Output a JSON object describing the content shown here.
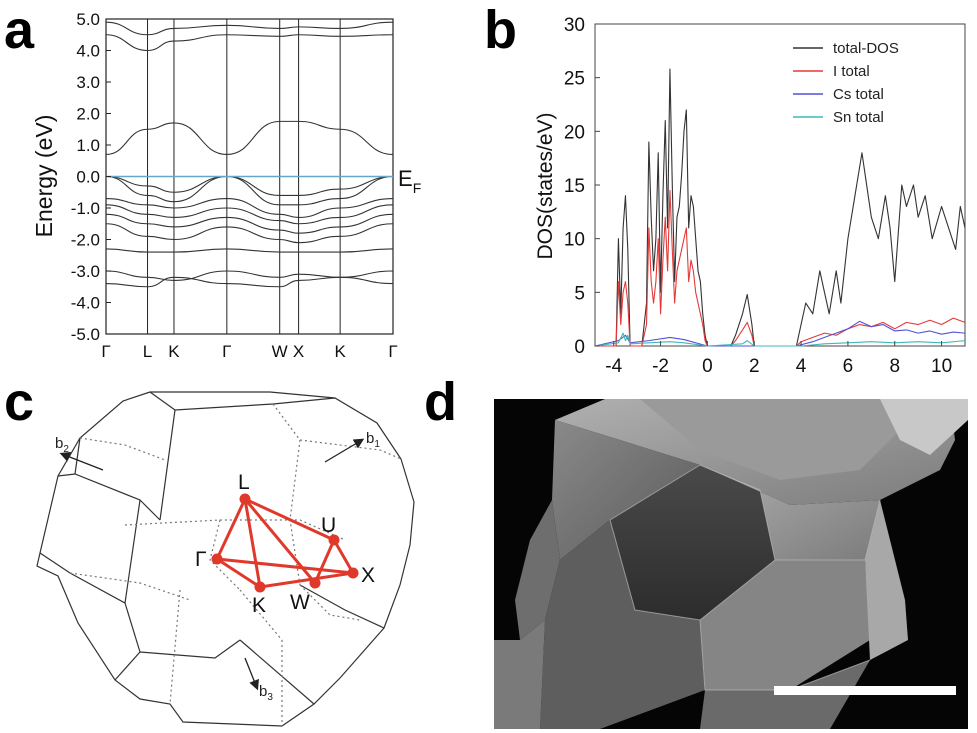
{
  "panels": {
    "a": {
      "letter": "a"
    },
    "b": {
      "letter": "b"
    },
    "c": {
      "letter": "c"
    },
    "d": {
      "letter": "d"
    }
  },
  "chart_data": [
    {
      "panel": "a",
      "type": "line",
      "ylabel": "Energy (eV)",
      "ylim": [
        -5.0,
        5.0
      ],
      "yticks": [
        "5.0",
        "4.0",
        "3.0",
        "2.0",
        "1.0",
        "0.0",
        "-1.0",
        "-2.0",
        "-3.0",
        "-4.0",
        "-5.0"
      ],
      "ytick_values": [
        5,
        4,
        3,
        2,
        1,
        0,
        -1,
        -2,
        -3,
        -4,
        -5
      ],
      "kpath": [
        "Γ",
        "L",
        "K",
        "Γ",
        "W",
        "X",
        "K",
        "Γ"
      ],
      "kpath_positions": [
        0,
        0.55,
        0.9,
        1.6,
        2.3,
        2.55,
        3.1,
        3.8
      ],
      "fermi_label": "E",
      "fermi_sub": "F",
      "fermi_energy": 0.0,
      "fermi_color": "#6aa4c8",
      "bands": [
        [
          4.5,
          4.0,
          4.3,
          4.5,
          4.45,
          4.5,
          4.45,
          4.5
        ],
        [
          4.9,
          4.5,
          4.7,
          4.8,
          4.7,
          4.75,
          4.7,
          4.9
        ],
        [
          0.7,
          1.5,
          1.7,
          0.7,
          1.75,
          1.75,
          1.5,
          0.7
        ],
        [
          0.0,
          -0.3,
          -0.5,
          0.0,
          -0.6,
          -0.6,
          -0.4,
          0.0
        ],
        [
          0.0,
          -0.6,
          -0.8,
          0.0,
          -0.9,
          -0.9,
          -0.7,
          0.0
        ],
        [
          -0.7,
          -0.9,
          -1.0,
          -0.7,
          -1.2,
          -1.3,
          -1.0,
          -0.7
        ],
        [
          -0.9,
          -1.2,
          -1.3,
          -1.0,
          -1.4,
          -1.5,
          -1.3,
          -0.9
        ],
        [
          -1.2,
          -1.5,
          -1.6,
          -1.3,
          -1.7,
          -1.8,
          -1.6,
          -1.2
        ],
        [
          -1.5,
          -1.9,
          -2.0,
          -1.6,
          -2.0,
          -2.1,
          -1.9,
          -1.5
        ],
        [
          -2.3,
          -2.4,
          -2.4,
          -2.3,
          -2.4,
          -2.4,
          -2.4,
          -2.3
        ],
        [
          -3.0,
          -3.2,
          -3.3,
          -3.0,
          -3.2,
          -3.1,
          -3.2,
          -3.0
        ],
        [
          -3.4,
          -3.5,
          -3.2,
          -3.4,
          -3.5,
          -3.3,
          -3.2,
          -3.4
        ]
      ]
    },
    {
      "panel": "b",
      "type": "line",
      "ylabel": "DOS(states/eV)",
      "xlabel": "",
      "xlim": [
        -4.8,
        11
      ],
      "ylim": [
        0,
        30
      ],
      "xticks": [
        "-4",
        "-2",
        "0",
        "2",
        "4",
        "6",
        "8",
        "10"
      ],
      "xtick_values": [
        -4,
        -2,
        0,
        2,
        4,
        6,
        8,
        10
      ],
      "yticks": [
        "0",
        "5",
        "10",
        "15",
        "20",
        "25",
        "30"
      ],
      "ytick_values": [
        0,
        5,
        10,
        15,
        20,
        25,
        30
      ],
      "legend_position": "top-right",
      "series": [
        {
          "name": "total-DOS",
          "color": "#333333",
          "x": [
            -4.8,
            -3.9,
            -3.8,
            -3.7,
            -3.6,
            -3.5,
            -3.4,
            -3.3,
            -3.2,
            -3.0,
            -2.8,
            -2.6,
            -2.5,
            -2.4,
            -2.3,
            -2.2,
            -2.1,
            -2.0,
            -1.9,
            -1.8,
            -1.7,
            -1.6,
            -1.5,
            -1.4,
            -1.3,
            -1.2,
            -1.1,
            -1.0,
            -0.9,
            -0.8,
            -0.7,
            -0.6,
            -0.5,
            -0.4,
            -0.3,
            -0.2,
            -0.1,
            0.0,
            0.1,
            1.0,
            1.2,
            1.5,
            1.7,
            1.9,
            2.0,
            3.8,
            4.0,
            4.2,
            4.5,
            4.8,
            5.0,
            5.2,
            5.5,
            5.7,
            6.0,
            6.3,
            6.6,
            6.8,
            7.0,
            7.3,
            7.6,
            7.8,
            8.0,
            8.3,
            8.5,
            8.8,
            9.0,
            9.3,
            9.6,
            10.0,
            10.3,
            10.6,
            10.8,
            11.0
          ],
          "y": [
            0,
            0,
            10,
            3,
            11,
            14,
            9,
            0,
            0,
            0,
            0,
            4,
            19,
            12,
            7,
            10,
            18,
            5,
            14,
            21,
            11,
            25.8,
            15,
            6,
            12,
            13,
            16,
            20,
            22,
            11,
            14,
            13,
            10,
            7,
            6,
            3,
            1,
            0,
            0,
            0,
            1,
            3,
            4.8,
            2,
            0,
            0,
            2,
            4,
            3,
            7,
            5,
            3,
            7,
            4,
            10,
            14,
            18,
            15,
            12,
            10,
            14,
            11,
            6,
            15,
            13,
            15,
            12,
            14,
            10,
            13,
            11,
            9,
            13,
            11
          ]
        },
        {
          "name": "I total",
          "color": "#e53939",
          "x": [
            -4.8,
            -3.9,
            -3.8,
            -3.7,
            -3.6,
            -3.5,
            -3.4,
            -3.3,
            -3.2,
            -3.0,
            -2.8,
            -2.6,
            -2.5,
            -2.4,
            -2.3,
            -2.2,
            -2.1,
            -2.0,
            -1.9,
            -1.8,
            -1.7,
            -1.6,
            -1.5,
            -1.4,
            -1.3,
            -1.2,
            -1.1,
            -1.0,
            -0.9,
            -0.8,
            -0.7,
            -0.6,
            -0.5,
            -0.4,
            -0.3,
            -0.2,
            -0.1,
            0.0,
            0.1,
            1.0,
            1.2,
            1.5,
            1.7,
            1.9,
            2.0,
            3.8,
            4.0,
            4.5,
            5.0,
            5.5,
            6.0,
            6.5,
            7.0,
            7.5,
            8.0,
            8.5,
            9.0,
            9.5,
            10.0,
            10.5,
            11.0
          ],
          "y": [
            0,
            0,
            6,
            2,
            5,
            6,
            4,
            0,
            0,
            0,
            0,
            2,
            11,
            6,
            4,
            6,
            10,
            3,
            8,
            12,
            7,
            14.5,
            9,
            4,
            7,
            8,
            9,
            10,
            11,
            6,
            8,
            7,
            5,
            4,
            3,
            2,
            0.5,
            0,
            0,
            0,
            0.5,
            1.5,
            2.2,
            1,
            0,
            0,
            0.4,
            0.8,
            1.2,
            1.0,
            1.6,
            2.0,
            1.8,
            2.2,
            1.6,
            2.2,
            2.0,
            2.4,
            2.0,
            2.6,
            2.2
          ]
        },
        {
          "name": "Cs total",
          "color": "#5252d6",
          "x": [
            -4.8,
            -3.8,
            -3.5,
            -3.3,
            -2.5,
            -1.6,
            -1.0,
            0.0,
            1.0,
            2.0,
            3.8,
            4.5,
            5.0,
            5.5,
            6.0,
            6.5,
            7.0,
            7.5,
            8.0,
            8.5,
            9.0,
            9.5,
            10.0,
            10.5,
            11.0
          ],
          "y": [
            0,
            0.5,
            1.0,
            0.3,
            0.5,
            0.8,
            0.6,
            0.0,
            0,
            0,
            0,
            0.4,
            0.8,
            1.2,
            1.6,
            2.3,
            1.8,
            2.0,
            1.4,
            1.5,
            1.2,
            1.4,
            1.1,
            1.3,
            1.2
          ]
        },
        {
          "name": "Sn total",
          "color": "#3fb8b8",
          "x": [
            -4.8,
            -3.8,
            -3.6,
            -3.5,
            -3.4,
            -3.3,
            -2.5,
            -1.6,
            -1.0,
            0.0,
            1.5,
            1.7,
            2.0,
            4.0,
            5.0,
            6.0,
            7.0,
            8.0,
            9.0,
            10.0,
            11.0
          ],
          "y": [
            0,
            0.3,
            1.2,
            0.5,
            1.0,
            0.2,
            0.3,
            0.4,
            0.3,
            0,
            0.2,
            0.5,
            0,
            0,
            0.2,
            0.3,
            0.4,
            0.3,
            0.4,
            0.3,
            0.5
          ]
        }
      ]
    }
  ],
  "brillouin": {
    "vector_labels": {
      "b1": "b",
      "b1_sub": "1",
      "b2": "b",
      "b2_sub": "2",
      "b3": "b",
      "b3_sub": "3"
    },
    "points": {
      "L": "L",
      "U": "U",
      "Gamma": "Γ",
      "X": "X",
      "K": "K",
      "W": "W"
    },
    "path_color": "#e0392b"
  },
  "micrograph": {
    "background": "#050505",
    "scale_bar_color": "#ffffff"
  }
}
